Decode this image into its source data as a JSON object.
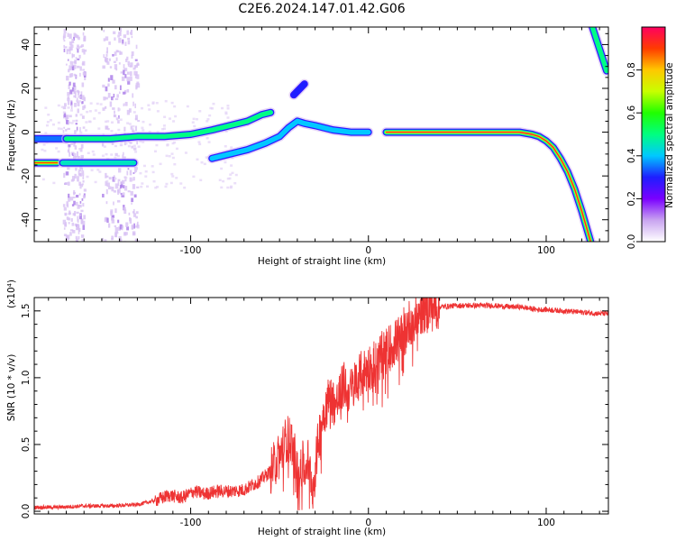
{
  "figure_title": "C2E6.2024.147.01.42.G06",
  "chart_data": [
    {
      "type": "heatmap",
      "title": "",
      "xlabel": "Height of straight line (km)",
      "ylabel": "Frequency (Hz)",
      "xlim": [
        -188,
        135
      ],
      "ylim": [
        -50,
        48
      ],
      "xticks": [
        -100,
        0,
        100
      ],
      "yticks": [
        -40,
        -20,
        0,
        20,
        40
      ],
      "grid": false,
      "colorbar": {
        "label": "Normalized spectral amplitude",
        "range": [
          0.0,
          1.0
        ],
        "ticks": [
          "0.0",
          "0.2",
          "0.4",
          "0.6",
          "0.8"
        ],
        "colors": [
          "#ffffff",
          "#c9a4f0",
          "#7a00ff",
          "#1e1eff",
          "#00c8ff",
          "#00ff80",
          "#20ff00",
          "#c8ff00",
          "#ffc800",
          "#ff3c00",
          "#ff0060"
        ]
      },
      "tracks": [
        {
          "amplitude": 0.9,
          "points": [
            [
              -188,
              -14
            ],
            [
              -180,
              -14
            ],
            [
              -175,
              -14
            ]
          ]
        },
        {
          "amplitude": 0.45,
          "points": [
            [
              -172,
              -14
            ],
            [
              -160,
              -14
            ],
            [
              -145,
              -14
            ],
            [
              -132,
              -14
            ]
          ]
        },
        {
          "amplitude": 0.35,
          "points": [
            [
              -192,
              -3
            ],
            [
              -180,
              -3
            ],
            [
              -170,
              -3
            ]
          ]
        },
        {
          "amplitude": 0.5,
          "points": [
            [
              -170,
              -3
            ],
            [
              -160,
              -3
            ],
            [
              -145,
              -3
            ],
            [
              -130,
              -2
            ],
            [
              -115,
              -2
            ],
            [
              -100,
              -1
            ],
            [
              -88,
              1
            ],
            [
              -78,
              3
            ],
            [
              -68,
              5
            ],
            [
              -60,
              8
            ],
            [
              -55,
              9
            ]
          ]
        },
        {
          "amplitude": 0.4,
          "points": [
            [
              -88,
              -12
            ],
            [
              -78,
              -10
            ],
            [
              -68,
              -8
            ],
            [
              -58,
              -5
            ],
            [
              -50,
              -2
            ],
            [
              -45,
              2
            ],
            [
              -40,
              5
            ],
            [
              -36,
              4
            ],
            [
              -30,
              3
            ],
            [
              -20,
              1
            ],
            [
              -10,
              0
            ],
            [
              0,
              0
            ]
          ]
        },
        {
          "amplitude": 0.95,
          "points": [
            [
              10,
              0
            ],
            [
              30,
              0
            ],
            [
              50,
              0
            ],
            [
              70,
              0
            ],
            [
              85,
              0
            ],
            [
              92,
              -1
            ],
            [
              96,
              -2
            ],
            [
              100,
              -4
            ],
            [
              104,
              -7
            ],
            [
              108,
              -12
            ],
            [
              112,
              -18
            ],
            [
              116,
              -26
            ],
            [
              120,
              -36
            ],
            [
              125,
              -50
            ]
          ]
        },
        {
          "amplitude": 0.5,
          "points": [
            [
              126,
              48
            ],
            [
              130,
              38
            ],
            [
              134,
              28
            ]
          ]
        },
        {
          "amplitude": 0.3,
          "points": [
            [
              -42,
              17
            ],
            [
              -36,
              22
            ]
          ]
        }
      ]
    },
    {
      "type": "line",
      "title": "",
      "xlabel": "Height of straight line (km)",
      "ylabel": "SNR (10 * v/v)",
      "y_multiplier": "(x10⁴)",
      "xlim": [
        -188,
        135
      ],
      "ylim": [
        -0.02,
        1.6
      ],
      "xticks": [
        -100,
        0,
        100
      ],
      "yticks": [
        "0.0",
        "0.5",
        "1.0",
        "1.5"
      ],
      "grid": false,
      "color": "#ee3333",
      "series": [
        {
          "x": [
            -188,
            -175,
            -160,
            -145,
            -130,
            -120,
            -112,
            -105,
            -98,
            -92,
            -85,
            -78,
            -70,
            -62,
            -55,
            -50,
            -46,
            -43,
            -40,
            -37,
            -34,
            -31,
            -28,
            -25,
            -22,
            -18,
            -14,
            -10,
            -6,
            -2,
            2,
            6,
            10,
            14,
            18,
            22,
            26,
            30,
            35,
            40,
            50,
            60,
            70,
            80,
            86,
            90,
            95,
            100,
            110,
            120,
            130,
            135
          ],
          "y": [
            0.03,
            0.03,
            0.04,
            0.04,
            0.05,
            0.08,
            0.12,
            0.1,
            0.15,
            0.13,
            0.15,
            0.15,
            0.16,
            0.22,
            0.3,
            0.42,
            0.55,
            0.52,
            0.3,
            0.35,
            0.38,
            0.18,
            0.55,
            0.75,
            0.85,
            0.8,
            0.95,
            0.9,
            1.0,
            1.05,
            1.1,
            1.15,
            1.2,
            1.25,
            1.3,
            1.4,
            1.45,
            1.5,
            1.52,
            1.53,
            1.54,
            1.54,
            1.54,
            1.53,
            1.53,
            1.52,
            1.51,
            1.51,
            1.5,
            1.49,
            1.48,
            1.48
          ]
        }
      ]
    }
  ]
}
